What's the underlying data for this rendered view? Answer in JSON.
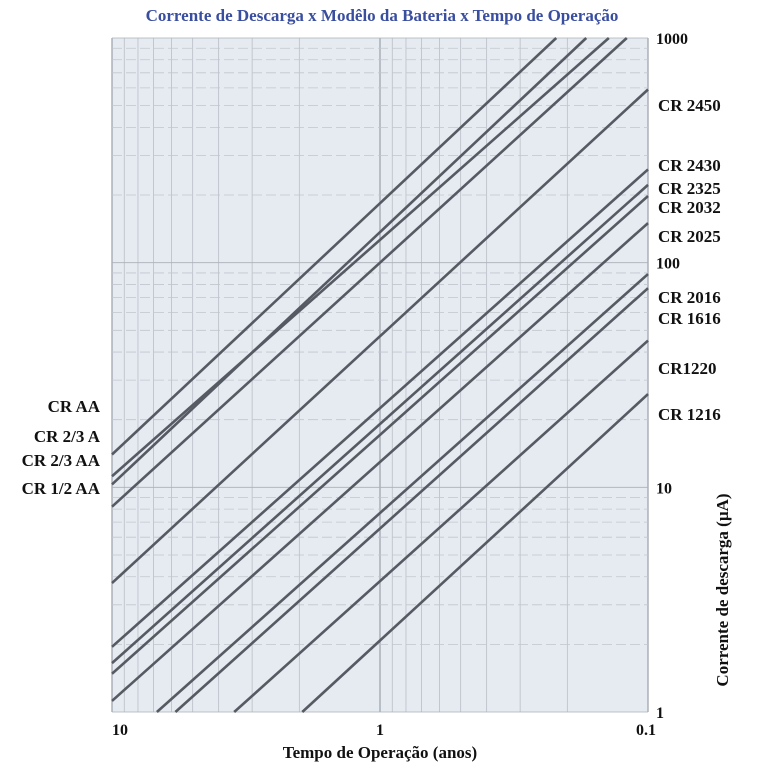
{
  "chart_data": {
    "type": "line",
    "title": "Corrente de Descarga x Modêlo da Bateria x Tempo de Operação",
    "xlabel": "Tempo de Operação (anos)",
    "ylabel": "Corrente de descarga (µA)",
    "x_scale": "log",
    "y_scale": "log",
    "x_reversed": true,
    "xlim": [
      10,
      0.1
    ],
    "ylim": [
      1,
      1000
    ],
    "x_ticks": [
      "10",
      "1",
      "0.1"
    ],
    "y_ticks": [
      "1000",
      "100",
      "10",
      "1"
    ],
    "grid": true,
    "background": "#e6ebf2",
    "line_color": "#555a63",
    "battery_labels_left": [
      "CR AA",
      "CR 2/3 A",
      "CR 2/3 AA",
      "CR 1/2 AA"
    ],
    "battery_labels_right": [
      "CR 2450",
      "CR 2430",
      "CR 2325",
      "CR 2032",
      "CR 2025",
      "CR 2016",
      "CR 1616",
      "CR1220",
      "CR 1216"
    ],
    "series": [
      {
        "name": "CR AA",
        "points": [
          [
            10,
            14
          ],
          [
            0.22,
            1000
          ]
        ]
      },
      {
        "name": "CR 2/3 A",
        "points": [
          [
            10,
            11.2
          ],
          [
            0.14,
            1000
          ]
        ]
      },
      {
        "name": "CR 2/3 AA",
        "points": [
          [
            10,
            10.3
          ],
          [
            0.17,
            1000
          ]
        ]
      },
      {
        "name": "CR 1/2 AA",
        "points": [
          [
            10,
            8.2
          ],
          [
            0.12,
            1000
          ]
        ]
      },
      {
        "name": "CR 2450",
        "points": [
          [
            10,
            3.75
          ],
          [
            0.1,
            590
          ]
        ]
      },
      {
        "name": "CR 2430",
        "points": [
          [
            10,
            1.95
          ],
          [
            0.1,
            260
          ]
        ]
      },
      {
        "name": "CR 2325",
        "points": [
          [
            10,
            1.65
          ],
          [
            0.1,
            222
          ]
        ]
      },
      {
        "name": "CR 2032",
        "points": [
          [
            10,
            1.48
          ],
          [
            0.1,
            198
          ]
        ]
      },
      {
        "name": "CR 2025",
        "points": [
          [
            10,
            1.12
          ],
          [
            0.1,
            150
          ]
        ]
      },
      {
        "name": "CR 2016",
        "points": [
          [
            6.8,
            1
          ],
          [
            0.1,
            89
          ]
        ]
      },
      {
        "name": "CR 1616",
        "points": [
          [
            5.8,
            1
          ],
          [
            0.1,
            77
          ]
        ]
      },
      {
        "name": "CR1220",
        "points": [
          [
            3.5,
            1
          ],
          [
            0.1,
            45
          ]
        ]
      },
      {
        "name": "CR 1216",
        "points": [
          [
            1.95,
            1
          ],
          [
            0.1,
            26
          ]
        ]
      }
    ]
  }
}
